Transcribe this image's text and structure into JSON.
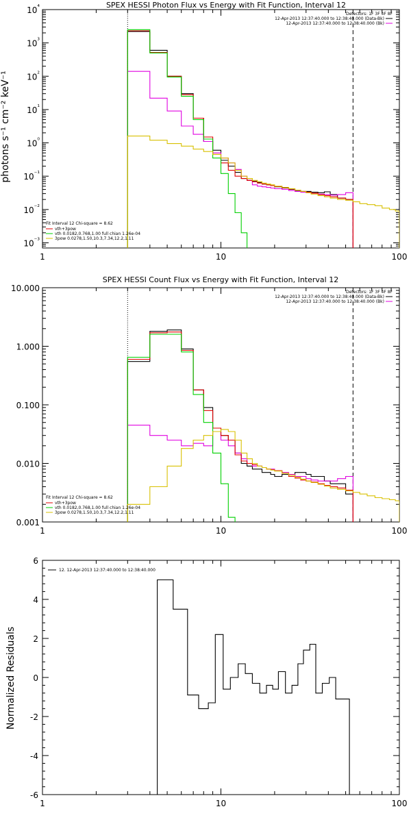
{
  "chart_data": [
    {
      "type": "line",
      "title": "SPEX HESSI Photon Flux vs Energy with Fit Function, Interval 12",
      "xlabel": "",
      "ylabel": "photons s⁻¹ cm⁻² keV⁻¹",
      "xscale": "log",
      "yscale": "log",
      "xlim": [
        1,
        100
      ],
      "ylim": [
        0.0007,
        10000
      ],
      "x_tick_labels": [
        "1",
        "10",
        "100"
      ],
      "y_tick_labels": [
        "10⁻³",
        "10⁻²",
        "10⁻¹",
        "10⁰",
        "10¹",
        "10²",
        "10³",
        "10⁴"
      ],
      "top_legend": {
        "lines": [
          "Detectors: 1F 3F 4F 8F",
          "12-Apr-2013 12:37:40.000 to 12:38:40.000 (Data-Bk)",
          "12-Apr-2013 12:37:40.000 to 12:38:40.000 (Bk)"
        ],
        "colors": [
          "",
          "#000000",
          "#e000e0"
        ]
      },
      "fit_legend": {
        "header": "Fit Interval 12   Chi-square = 8.62",
        "lines": [
          "vth+3pow",
          "vth 0.0182,0.768,1.00  full chian 1.26e-04",
          "3pow 0.0278,1.50,10.3,7.34,12.2,1.11"
        ],
        "colors": [
          "#e00000",
          "#00d000",
          "#d8c000"
        ]
      },
      "vlines": [
        3.0,
        55.0
      ],
      "bin_edges": [
        3.0,
        4.0,
        5.0,
        6.0,
        7.0,
        8.0,
        9.0,
        10.0,
        11.0,
        12.0,
        13.0,
        14.0,
        15.0,
        16.0,
        17.0,
        18.0,
        19.0,
        20.0,
        22.0,
        24.0,
        26.0,
        28.0,
        30.0,
        32.0,
        35.0,
        38.0,
        41.0,
        45.0,
        50.0,
        55.0
      ],
      "series": [
        {
          "name": "Data-Bk",
          "color": "#000000",
          "values": [
            2200,
            600,
            100,
            30,
            5.5,
            1.1,
            0.6,
            0.3,
            0.2,
            0.13,
            0.085,
            0.075,
            0.07,
            0.065,
            0.058,
            0.055,
            0.052,
            0.048,
            0.044,
            0.04,
            0.037,
            0.035,
            0.035,
            0.033,
            0.032,
            0.034,
            0.028,
            0.022,
            0.02
          ]
        },
        {
          "name": "Bk",
          "color": "#e000e0",
          "values": [
            140,
            22,
            9,
            3.2,
            1.8,
            1.1,
            0.5,
            0.35,
            0.25,
            0.16,
            0.1,
            0.075,
            0.055,
            0.05,
            0.048,
            0.046,
            0.044,
            0.042,
            0.04,
            0.037,
            0.035,
            0.033,
            0.032,
            0.03,
            0.029,
            0.028,
            0.027,
            0.028,
            0.032
          ]
        },
        {
          "name": "vth+3pow",
          "color": "#e00000",
          "values": [
            2300,
            520,
            100,
            28,
            5.5,
            1.5,
            0.45,
            0.25,
            0.15,
            0.1,
            0.085,
            0.075,
            0.068,
            0.062,
            0.058,
            0.055,
            0.052,
            0.049,
            0.045,
            0.041,
            0.038,
            0.035,
            0.033,
            0.031,
            0.028,
            0.026,
            0.024,
            0.022,
            0.02
          ]
        },
        {
          "name": "vth",
          "color": "#00d000",
          "values": [
            2500,
            500,
            95,
            25,
            5.0,
            1.3,
            0.35,
            0.12,
            0.03,
            0.008,
            0.002
          ]
        },
        {
          "name": "3pow",
          "color": "#d8c000",
          "bin_edges_extended": [
            3.0,
            4.0,
            5.0,
            6.0,
            7.0,
            8.0,
            9.0,
            10.0,
            11.0,
            12.0,
            13.0,
            14.0,
            15.0,
            16.0,
            17.0,
            18.0,
            19.0,
            20.0,
            22.0,
            24.0,
            26.0,
            28.0,
            30.0,
            32.0,
            35.0,
            38.0,
            41.0,
            45.0,
            50.0,
            55.0,
            60.0,
            66.0,
            73.0,
            80.0,
            88.0,
            95.0,
            100.0
          ],
          "values": [
            1.6,
            1.2,
            0.95,
            0.8,
            0.65,
            0.55,
            0.45,
            0.35,
            0.25,
            0.15,
            0.1,
            0.085,
            0.075,
            0.068,
            0.062,
            0.058,
            0.055,
            0.05,
            0.046,
            0.042,
            0.038,
            0.035,
            0.032,
            0.029,
            0.026,
            0.024,
            0.022,
            0.02,
            0.019,
            0.017,
            0.015,
            0.014,
            0.013,
            0.011,
            0.01,
            0.009
          ]
        }
      ]
    },
    {
      "type": "line",
      "title": "SPEX HESSI Count Flux vs Energy with Fit Function, Interval 12",
      "xlabel": "",
      "ylabel": "",
      "xscale": "log",
      "yscale": "log",
      "xlim": [
        1,
        100
      ],
      "ylim": [
        0.001,
        10
      ],
      "x_tick_labels": [
        "1",
        "10",
        "100"
      ],
      "y_tick_labels": [
        "0.001",
        "0.010",
        "0.100",
        "1.000",
        "10.000"
      ],
      "top_legend": {
        "lines": [
          "Detectors: 1F 3F 4F 8F",
          "12-Apr-2013 12:37:40.000 to 12:38:40.000 (Data-Bk)",
          "12-Apr-2013 12:37:40.000 to 12:38:40.000 (Bk)"
        ],
        "colors": [
          "",
          "#000000",
          "#e000e0"
        ]
      },
      "fit_legend": {
        "header": "Fit Interval 12   Chi-square = 8.62",
        "lines": [
          "vth+3pow",
          "vth 0.0182,0.768,1.00  full chian 1.26e-04",
          "3pow 0.0278,1.50,10.3,7.34,12.2,1.11"
        ],
        "colors": [
          "#e00000",
          "#00d000",
          "#d8c000"
        ]
      },
      "vlines": [
        3.0,
        55.0
      ],
      "bin_edges": [
        3.0,
        4.0,
        5.0,
        6.0,
        7.0,
        8.0,
        9.0,
        10.0,
        11.0,
        12.0,
        13.0,
        14.0,
        15.0,
        16.0,
        17.0,
        18.0,
        19.0,
        20.0,
        22.0,
        24.0,
        26.0,
        28.0,
        30.0,
        32.0,
        35.0,
        38.0,
        41.0,
        45.0,
        50.0,
        55.0
      ],
      "series": [
        {
          "name": "Data-Bk",
          "color": "#000000",
          "values": [
            0.55,
            1.8,
            1.9,
            0.9,
            0.18,
            0.09,
            0.04,
            0.03,
            0.025,
            0.015,
            0.01,
            0.009,
            0.008,
            0.008,
            0.007,
            0.007,
            0.0065,
            0.006,
            0.0065,
            0.006,
            0.007,
            0.007,
            0.0065,
            0.006,
            0.006,
            0.005,
            0.0045,
            0.0045,
            0.003
          ]
        },
        {
          "name": "Bk",
          "color": "#e000e0",
          "values": [
            0.045,
            0.03,
            0.025,
            0.02,
            0.022,
            0.02,
            0.035,
            0.025,
            0.02,
            0.015,
            0.012,
            0.01,
            0.009,
            0.009,
            0.0085,
            0.008,
            0.008,
            0.0075,
            0.007,
            0.0065,
            0.006,
            0.006,
            0.0055,
            0.0052,
            0.005,
            0.005,
            0.005,
            0.0055,
            0.006
          ]
        },
        {
          "name": "vth+3pow",
          "color": "#e00000",
          "values": [
            0.6,
            1.7,
            1.75,
            0.85,
            0.18,
            0.08,
            0.04,
            0.03,
            0.025,
            0.014,
            0.011,
            0.01,
            0.0095,
            0.009,
            0.0085,
            0.008,
            0.0078,
            0.0075,
            0.0068,
            0.006,
            0.0056,
            0.0052,
            0.005,
            0.0048,
            0.0045,
            0.0042,
            0.004,
            0.0038,
            0.0035
          ]
        },
        {
          "name": "vth",
          "color": "#00d000",
          "values": [
            0.65,
            1.6,
            1.6,
            0.8,
            0.15,
            0.05,
            0.015,
            0.0045,
            0.0012
          ]
        },
        {
          "name": "3pow",
          "color": "#d8c000",
          "bin_edges_extended": [
            3.0,
            4.0,
            5.0,
            6.0,
            7.0,
            8.0,
            9.0,
            10.0,
            11.0,
            12.0,
            13.0,
            14.0,
            15.0,
            16.0,
            17.0,
            18.0,
            19.0,
            20.0,
            22.0,
            24.0,
            26.0,
            28.0,
            30.0,
            32.0,
            35.0,
            38.0,
            41.0,
            45.0,
            50.0,
            55.0,
            60.0,
            66.0,
            73.0,
            80.0,
            88.0,
            95.0,
            100.0
          ],
          "values": [
            0.002,
            0.004,
            0.009,
            0.018,
            0.025,
            0.03,
            0.035,
            0.038,
            0.035,
            0.025,
            0.015,
            0.012,
            0.01,
            0.009,
            0.0085,
            0.008,
            0.0077,
            0.0074,
            0.0068,
            0.0063,
            0.0058,
            0.0054,
            0.005,
            0.0047,
            0.0044,
            0.0041,
            0.0038,
            0.0036,
            0.0034,
            0.0032,
            0.003,
            0.0028,
            0.0026,
            0.0025,
            0.0024,
            0.0023
          ]
        }
      ]
    },
    {
      "type": "line",
      "title": "",
      "xlabel": "",
      "ylabel": "Normalized Residuals",
      "xscale": "log",
      "yscale": "linear",
      "xlim": [
        1,
        100
      ],
      "ylim": [
        -6,
        6
      ],
      "x_tick_labels": [
        "1",
        "10",
        "100"
      ],
      "y_tick_labels": [
        "-6",
        "-4",
        "-2",
        "0",
        "2",
        "4",
        "6"
      ],
      "legend": [
        "12. 12-Apr-2013 12:37:40.000 to 12:38:40.000"
      ],
      "series": [
        {
          "name": "12. 12-Apr-2013 12:37:40.000 to 12:38:40.000",
          "color": "#000000",
          "bin_edges": [
            3.0,
            4.4,
            5.4,
            6.5,
            7.5,
            8.5,
            9.3,
            10.3,
            11.3,
            12.5,
            13.7,
            15.0,
            16.5,
            18.0,
            19.5,
            21.0,
            23.0,
            25.0,
            27.0,
            29.0,
            31.5,
            34.0,
            37.0,
            40.5,
            44.0,
            48.0,
            52.5,
            57.0
          ],
          "values": [
            -6.0,
            5.0,
            3.5,
            -0.9,
            -1.6,
            -1.3,
            2.2,
            -0.6,
            0.0,
            0.7,
            0.2,
            -0.3,
            -0.8,
            -0.4,
            -0.6,
            0.3,
            -0.8,
            -0.4,
            0.7,
            1.4,
            1.7,
            -0.8,
            -0.3,
            0.0,
            -1.1,
            -1.1,
            -6.0
          ]
        }
      ]
    }
  ]
}
